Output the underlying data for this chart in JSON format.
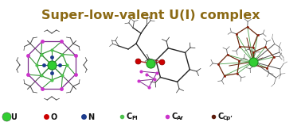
{
  "title": "Super-low-valent U(I) complex",
  "title_color": "#8B6914",
  "title_fontsize": 11.5,
  "bg_color": "#ffffff",
  "legend_items": [
    {
      "label": "U",
      "color": "#32CD32",
      "size": 8,
      "subscript": null
    },
    {
      "label": "O",
      "color": "#CC0000",
      "size": 5,
      "subscript": null
    },
    {
      "label": "N",
      "color": "#1C3B8C",
      "size": 5,
      "subscript": null
    },
    {
      "label": "C",
      "color": "#4DC44D",
      "size": 4,
      "subscript": "Pl"
    },
    {
      "label": "C",
      "color": "#CC33CC",
      "size": 4,
      "subscript": "Ar"
    },
    {
      "label": "C",
      "color": "#5C1A0A",
      "size": 4,
      "subscript": "Cp’"
    }
  ],
  "figsize": [
    3.78,
    1.59
  ],
  "dpi": 100
}
